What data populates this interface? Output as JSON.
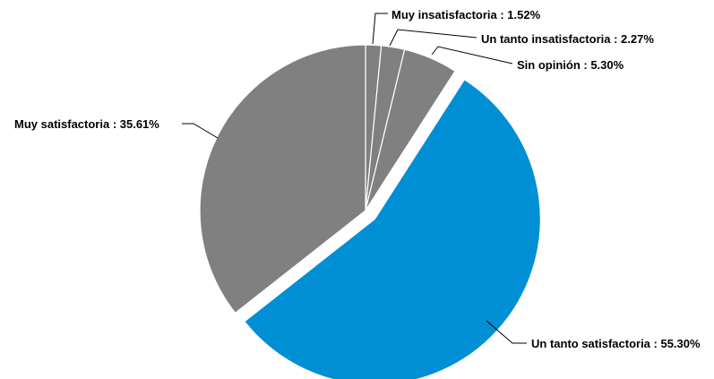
{
  "chart_data": {
    "type": "pie",
    "title": "",
    "slices": [
      {
        "label": "Muy insatisfactoria",
        "value": 1.52,
        "display": "Muy insatisfactoria : 1.52%",
        "color": "#808080",
        "exploded": false
      },
      {
        "label": "Un tanto insatisfactoria",
        "value": 2.27,
        "display": "Un tanto insatisfactoria : 2.27%",
        "color": "#808080",
        "exploded": false
      },
      {
        "label": "Sin opinión",
        "value": 5.3,
        "display": "Sin opinión : 5.30%",
        "color": "#808080",
        "exploded": false
      },
      {
        "label": "Un tanto satisfactoria",
        "value": 55.3,
        "display": "Un tanto satisfactoria : 55.30%",
        "color": "#008fd5",
        "exploded": true
      },
      {
        "label": "Muy satisfactoria",
        "value": 35.61,
        "display": "Muy satisfactoria : 35.61%",
        "color": "#808080",
        "exploded": false
      }
    ],
    "start_angle_deg": 0,
    "direction": "clockwise",
    "legend": "none"
  }
}
